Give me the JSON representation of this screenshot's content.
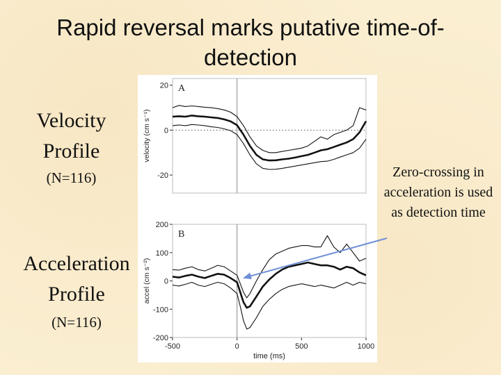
{
  "slide": {
    "title": "Rapid reversal marks putative time-of-detection",
    "velocity_label": "Velocity Profile",
    "velocity_n": "(N=116)",
    "acceleration_label": "Acceleration Profile",
    "acceleration_n": "(N=116)",
    "annotation": "Zero-crossing in acceleration is used as detection time",
    "arrow_color": "#6f8fd6"
  },
  "chart_data": [
    {
      "type": "line",
      "panel_label": "A",
      "ylabel": "velocity (cm s⁻¹)",
      "xlim": [
        -500,
        1000
      ],
      "ylim": [
        -28,
        23
      ],
      "yticks": [
        20,
        0,
        -20
      ],
      "reference_lines": {
        "x_zero": true,
        "y_zero_dotted": true
      },
      "x": [
        -500,
        -450,
        -400,
        -350,
        -300,
        -250,
        -200,
        -150,
        -100,
        -50,
        0,
        50,
        100,
        150,
        200,
        250,
        300,
        350,
        400,
        450,
        500,
        550,
        600,
        650,
        700,
        750,
        800,
        850,
        900,
        950,
        1000
      ],
      "series": [
        {
          "role": "upper",
          "values": [
            10,
            11,
            10.5,
            10.8,
            10.5,
            10.2,
            10,
            9.6,
            9,
            8,
            6,
            2,
            -3,
            -7,
            -9,
            -10,
            -10,
            -9.5,
            -9,
            -8.5,
            -8,
            -7,
            -5,
            -3,
            -4,
            -2,
            -1,
            0,
            2,
            10,
            9
          ]
        },
        {
          "role": "mean",
          "values": [
            6,
            6.2,
            6,
            6.5,
            6.2,
            6,
            5.7,
            5.4,
            4.8,
            3.9,
            2.2,
            -2,
            -7,
            -11,
            -13,
            -13.5,
            -13.4,
            -13,
            -12.7,
            -12.2,
            -11.6,
            -11,
            -10,
            -9,
            -8.5,
            -7.5,
            -6.5,
            -5.5,
            -4,
            -1,
            4
          ]
        },
        {
          "role": "lower",
          "values": [
            2,
            2.3,
            2,
            2.5,
            2.3,
            2,
            1.5,
            1.2,
            0.6,
            -0.2,
            -2,
            -6,
            -11,
            -15,
            -17,
            -17.5,
            -17.4,
            -17,
            -16.5,
            -16,
            -15.5,
            -15,
            -14.5,
            -14,
            -13.8,
            -13,
            -12,
            -11,
            -10,
            -8,
            -4
          ]
        }
      ]
    },
    {
      "type": "line",
      "panel_label": "B",
      "xlabel": "time (ms)",
      "ylabel": "accel (cm s⁻²)",
      "xlim": [
        -500,
        1000
      ],
      "ylim": [
        -200,
        200
      ],
      "xticks": [
        -500,
        0,
        500,
        1000
      ],
      "yticks": [
        200,
        100,
        0,
        -100,
        -200
      ],
      "reference_lines": {
        "x_zero": true
      },
      "x": [
        -500,
        -450,
        -400,
        -350,
        -300,
        -250,
        -200,
        -150,
        -100,
        -50,
        0,
        25,
        50,
        75,
        100,
        150,
        200,
        250,
        300,
        350,
        400,
        450,
        500,
        550,
        600,
        650,
        700,
        750,
        800,
        850,
        900,
        950,
        1000
      ],
      "series": [
        {
          "role": "upper",
          "values": [
            40,
            38,
            45,
            50,
            40,
            35,
            45,
            55,
            50,
            35,
            20,
            -10,
            -40,
            -60,
            -45,
            0,
            40,
            75,
            95,
            105,
            115,
            120,
            125,
            125,
            120,
            120,
            160,
            120,
            100,
            130,
            100,
            70,
            80
          ]
        },
        {
          "role": "mean",
          "values": [
            15,
            12,
            18,
            22,
            15,
            10,
            18,
            25,
            22,
            10,
            -5,
            -40,
            -75,
            -95,
            -90,
            -55,
            -20,
            5,
            25,
            40,
            50,
            55,
            60,
            65,
            60,
            55,
            55,
            50,
            40,
            50,
            45,
            30,
            20
          ]
        },
        {
          "role": "lower",
          "values": [
            -15,
            -18,
            -12,
            -5,
            -15,
            -20,
            -12,
            -5,
            -10,
            -25,
            -45,
            -90,
            -140,
            -170,
            -165,
            -130,
            -90,
            -65,
            -45,
            -30,
            -20,
            -15,
            -10,
            -15,
            -20,
            -15,
            -20,
            -25,
            -15,
            -5,
            -15,
            -5,
            -10
          ]
        }
      ]
    }
  ]
}
